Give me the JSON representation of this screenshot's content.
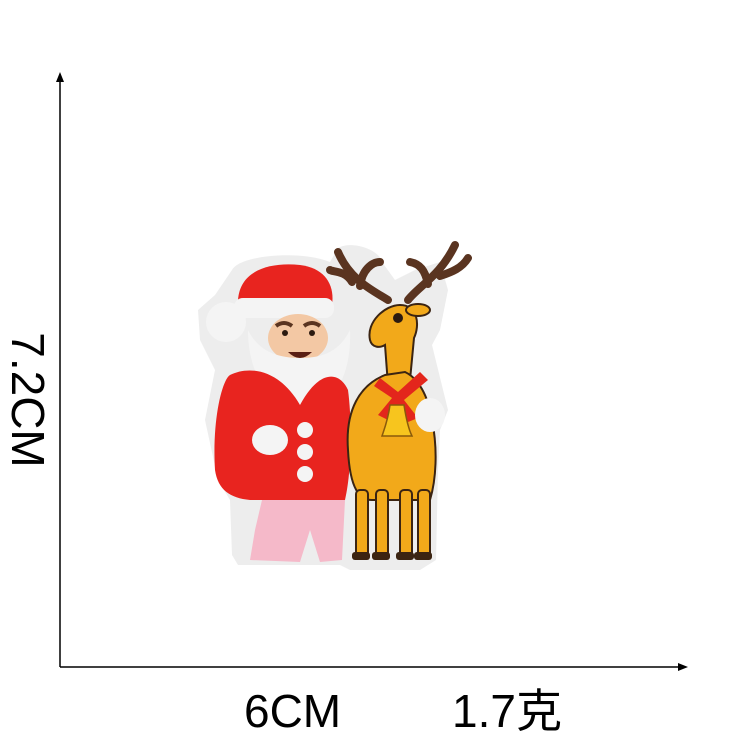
{
  "dimensions": {
    "height_label": "7.2CM",
    "width_label": "6CM",
    "weight_label": "1.7克"
  },
  "colors": {
    "axis": "#000000",
    "santa_red": "#e8241f",
    "santa_white": "#f4f4f4",
    "santa_skin": "#f3c8a4",
    "santa_pants": "#f5b9c9",
    "reindeer_body": "#f2a91a",
    "antler": "#5a3420",
    "bow": "#e3261c",
    "bell": "#f7c51e",
    "patch_border": "#ececec"
  },
  "image": {
    "subject_icon": "embroidered-patch-icon"
  }
}
